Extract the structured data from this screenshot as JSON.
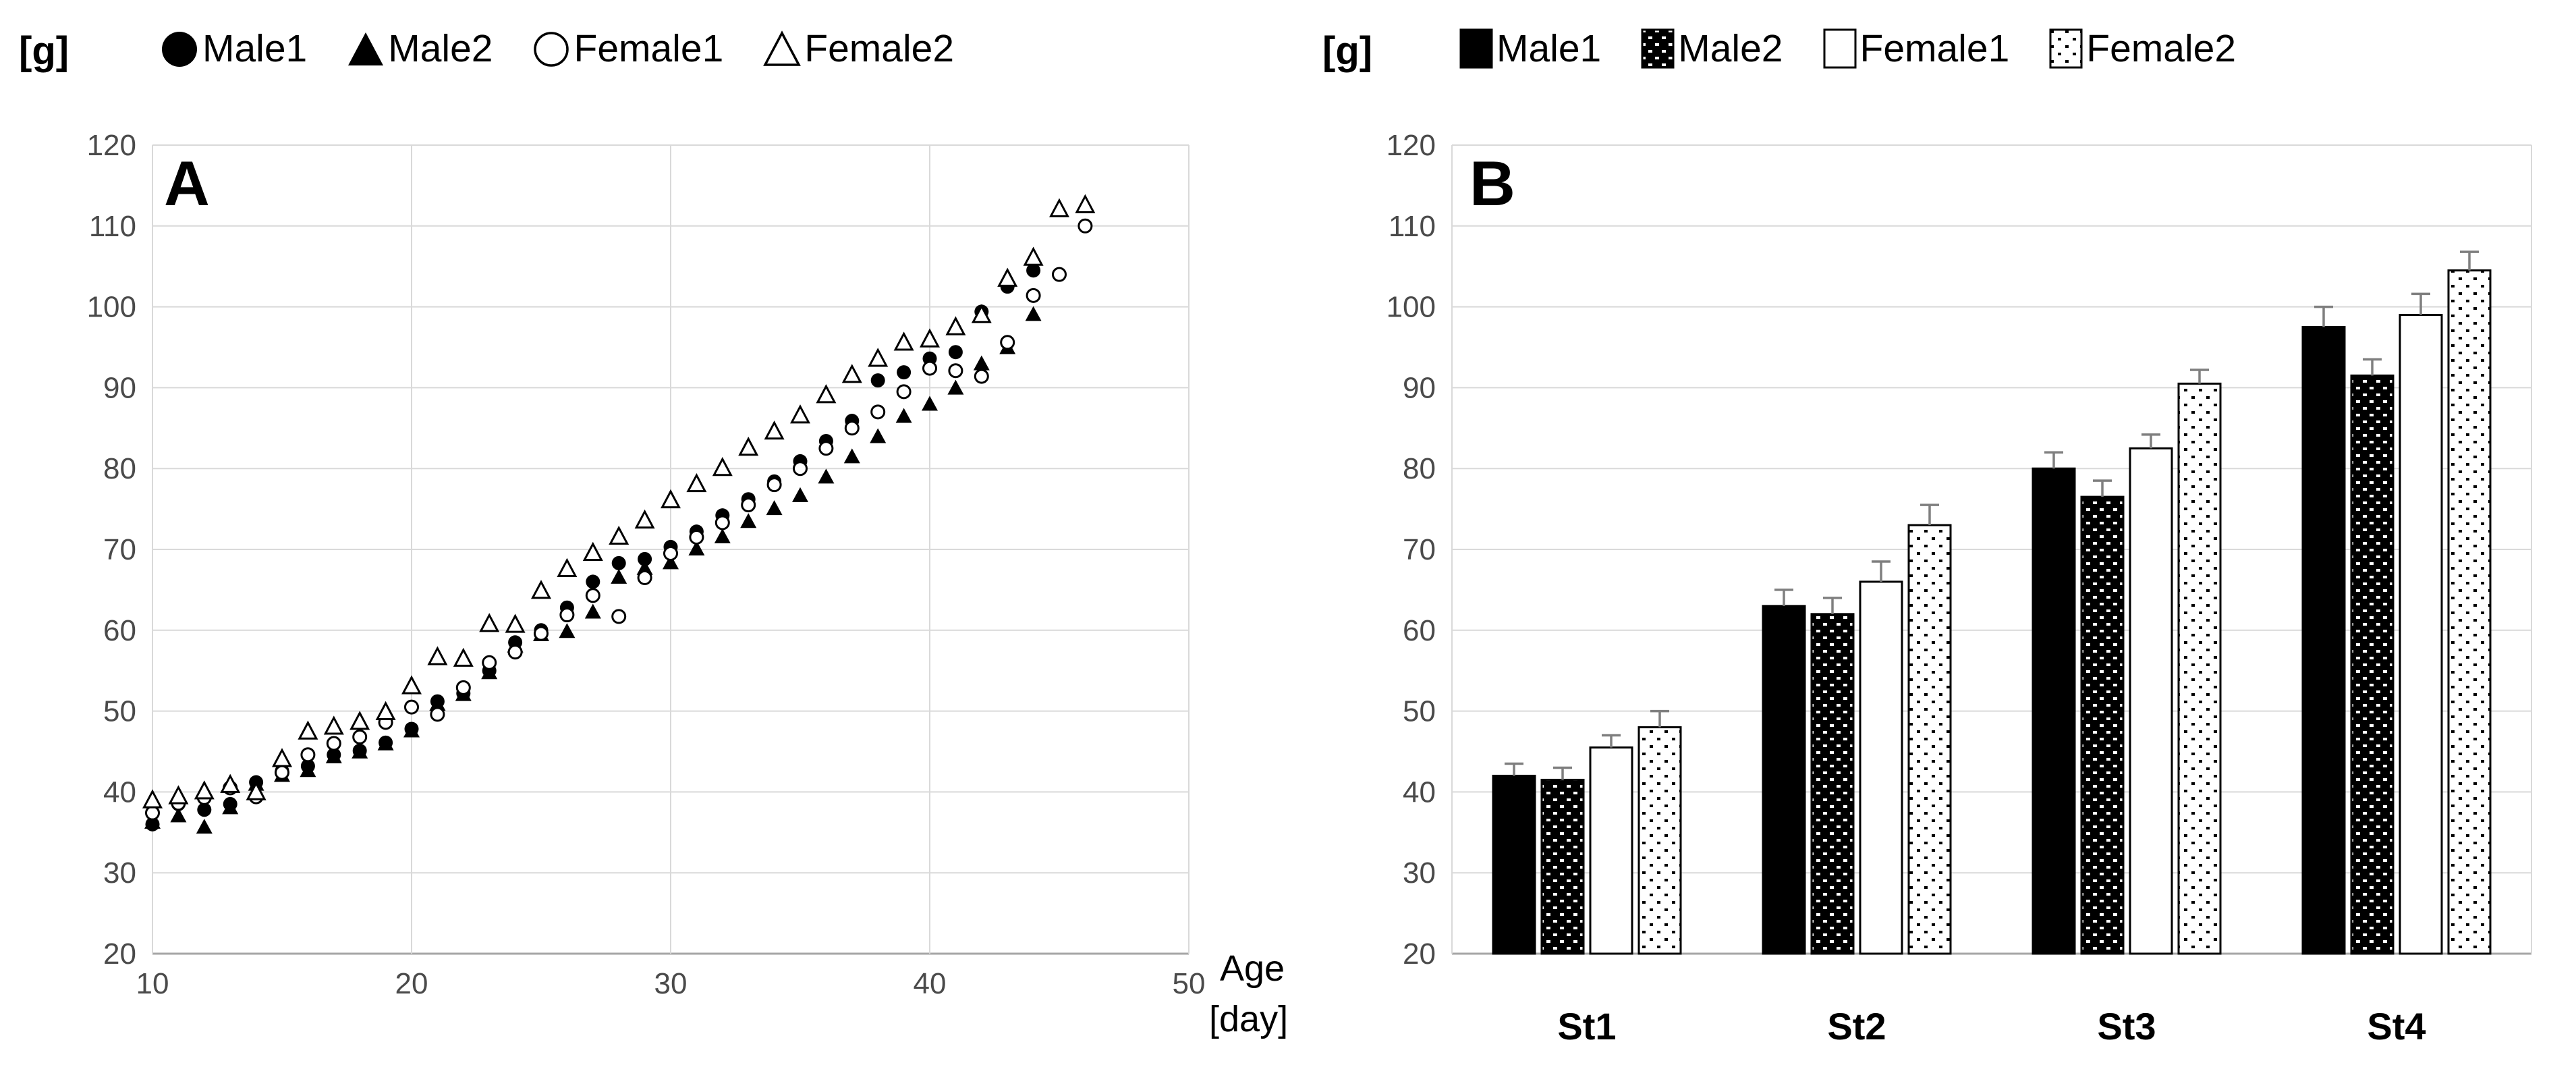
{
  "figure": {
    "unit_label": "[g]",
    "panel_a": {
      "label": "A",
      "x_axis_title": {
        "line1": "Age",
        "line2": "[day]"
      }
    },
    "panel_b": {
      "label": "B"
    },
    "colors": {
      "gridline": "#d9d9d9",
      "axis_line": "#a6a6a6",
      "tick_text": "#4a4a4a",
      "series_black": "#000000",
      "series_white": "#ffffff",
      "error_bar": "#7f7f7f"
    }
  },
  "chart_data": [
    {
      "type": "scatter",
      "title": "Panel A: body weight by age",
      "xlabel": "Age [day]",
      "ylabel": "[g]",
      "xlim": [
        10,
        50
      ],
      "ylim": [
        20,
        120
      ],
      "xticks": [
        10,
        20,
        30,
        40,
        50
      ],
      "yticks": [
        120,
        110,
        100,
        90,
        80,
        70,
        60,
        50,
        40,
        30,
        20
      ],
      "grid": true,
      "legend_position": "top",
      "series": [
        {
          "name": "Male1",
          "marker": "filled-circle",
          "x": [
            10,
            11,
            12,
            13,
            14,
            15,
            16,
            17,
            18,
            19,
            20,
            21,
            22,
            23,
            24,
            25,
            26,
            27,
            28,
            29,
            30,
            31,
            32,
            33,
            34,
            35,
            36,
            37,
            38,
            39,
            40,
            41,
            42,
            43,
            44
          ],
          "y": [
            36.0,
            38.5,
            37.8,
            38.5,
            41.2,
            42.6,
            43.2,
            44.6,
            45.1,
            46.1,
            47.8,
            51.2,
            52.2,
            55.0,
            58.5,
            60.0,
            62.8,
            66.0,
            68.3,
            68.8,
            70.3,
            72.2,
            74.2,
            76.2,
            78.4,
            80.9,
            83.4,
            85.9,
            90.9,
            91.9,
            93.6,
            94.4,
            99.4,
            102.5,
            104.5
          ]
        },
        {
          "name": "Male2",
          "marker": "filled-triangle",
          "x": [
            10,
            11,
            12,
            13,
            14,
            15,
            16,
            17,
            18,
            19,
            20,
            21,
            22,
            23,
            24,
            25,
            26,
            27,
            28,
            29,
            30,
            31,
            32,
            33,
            34,
            35,
            36,
            37,
            38,
            39,
            40,
            41,
            42,
            43,
            44
          ],
          "y": [
            36.2,
            37.0,
            35.6,
            38.0,
            40.9,
            42.0,
            42.6,
            44.3,
            44.9,
            45.9,
            47.5,
            50.8,
            52.0,
            54.7,
            58.0,
            59.4,
            59.8,
            62.2,
            66.5,
            67.6,
            68.3,
            70.0,
            71.5,
            73.4,
            75.0,
            76.6,
            78.9,
            81.4,
            83.9,
            86.4,
            87.9,
            89.9,
            92.9,
            94.9,
            99.0
          ]
        },
        {
          "name": "Female1",
          "marker": "open-circle",
          "x": [
            10,
            11,
            12,
            13,
            14,
            15,
            16,
            17,
            18,
            19,
            20,
            21,
            22,
            23,
            24,
            25,
            26,
            27,
            28,
            29,
            30,
            31,
            32,
            33,
            34,
            35,
            36,
            37,
            38,
            39,
            40,
            41,
            42,
            43,
            44,
            45,
            46
          ],
          "y": [
            37.4,
            38.6,
            39.3,
            40.5,
            39.4,
            42.4,
            44.6,
            46.0,
            46.8,
            48.6,
            50.5,
            49.6,
            52.9,
            56.0,
            57.3,
            59.6,
            61.9,
            64.3,
            61.7,
            66.5,
            69.5,
            71.5,
            73.3,
            75.5,
            78.0,
            80.0,
            82.5,
            85.0,
            87.0,
            89.5,
            92.4,
            92.1,
            91.4,
            95.6,
            101.4,
            104.0,
            110.0
          ]
        },
        {
          "name": "Female2",
          "marker": "open-triangle",
          "x": [
            10,
            11,
            12,
            13,
            14,
            15,
            16,
            17,
            18,
            19,
            20,
            21,
            22,
            23,
            24,
            25,
            26,
            27,
            28,
            29,
            30,
            31,
            32,
            33,
            34,
            35,
            36,
            37,
            38,
            39,
            40,
            41,
            42,
            43,
            44,
            45,
            46
          ],
          "y": [
            38.9,
            39.4,
            40.0,
            40.8,
            39.9,
            44.0,
            47.4,
            48.0,
            48.6,
            49.8,
            53.0,
            56.6,
            56.4,
            60.7,
            60.6,
            64.8,
            67.5,
            69.5,
            71.5,
            73.5,
            76.0,
            78.0,
            80.0,
            82.5,
            84.5,
            86.5,
            89.0,
            91.5,
            93.5,
            95.5,
            95.9,
            97.4,
            98.9,
            103.4,
            106.0,
            112.0,
            112.5
          ]
        }
      ]
    },
    {
      "type": "bar",
      "title": "Panel B: body weight by stage",
      "xlabel": "",
      "ylabel": "[g]",
      "categories": [
        "St1",
        "St2",
        "St3",
        "St4"
      ],
      "ylim": [
        20,
        120
      ],
      "yticks": [
        120,
        110,
        100,
        90,
        80,
        70,
        60,
        50,
        40,
        30,
        20
      ],
      "grid": true,
      "legend_position": "top",
      "error_bars": true,
      "series": [
        {
          "name": "Male1",
          "fill": "solid-black",
          "values": [
            42.0,
            63.0,
            80.0,
            97.5
          ],
          "errors": [
            1.5,
            2.0,
            2.0,
            2.5
          ]
        },
        {
          "name": "Male2",
          "fill": "black-white-dots",
          "values": [
            41.5,
            62.0,
            76.5,
            91.5
          ],
          "errors": [
            1.5,
            2.0,
            2.0,
            2.0
          ]
        },
        {
          "name": "Female1",
          "fill": "white",
          "values": [
            45.5,
            66.0,
            82.5,
            99.0
          ],
          "errors": [
            1.5,
            2.5,
            1.7,
            2.6
          ]
        },
        {
          "name": "Female2",
          "fill": "white-black-dots",
          "values": [
            48.0,
            73.0,
            90.5,
            104.5
          ],
          "errors": [
            2.0,
            2.5,
            1.7,
            2.3
          ]
        }
      ]
    }
  ]
}
